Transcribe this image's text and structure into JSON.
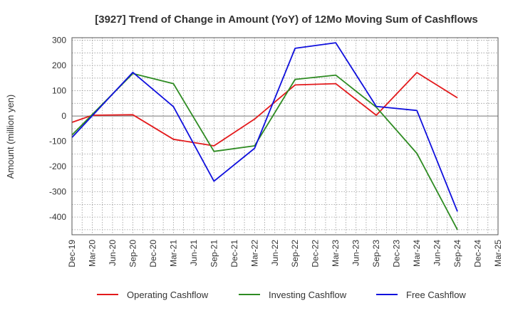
{
  "chart_data": {
    "type": "line",
    "title": "[3927]  Trend of Change in Amount (YoY) of 12Mo Moving Sum of Cashflows",
    "xlabel": "",
    "ylabel": "Amount (million yen)",
    "ylim": [
      -470,
      310
    ],
    "yticks": [
      300,
      200,
      100,
      0,
      -100,
      -200,
      -300,
      -400
    ],
    "categories": [
      "Dec-19",
      "Mar-20",
      "Jun-20",
      "Sep-20",
      "Dec-20",
      "Mar-21",
      "Jun-21",
      "Sep-21",
      "Dec-21",
      "Mar-22",
      "Jun-22",
      "Sep-22",
      "Dec-22",
      "Mar-23",
      "Jun-23",
      "Sep-23",
      "Dec-23",
      "Mar-24",
      "Jun-24",
      "Sep-24",
      "Dec-24",
      "Mar-25"
    ],
    "grid": true,
    "legend_position": "bottom",
    "series": [
      {
        "name": "Operating Cashflow",
        "color": "#e31a1c",
        "values": [
          -25,
          3,
          null,
          5,
          null,
          -92,
          null,
          -118,
          null,
          -12,
          null,
          123,
          null,
          128,
          null,
          3,
          null,
          172,
          null,
          72,
          null,
          null
        ]
      },
      {
        "name": "Investing Cashflow",
        "color": "#2e8b22",
        "values": [
          -75,
          null,
          null,
          168,
          null,
          128,
          null,
          -140,
          null,
          -118,
          null,
          145,
          null,
          162,
          null,
          35,
          null,
          -148,
          null,
          -450,
          null,
          null
        ]
      },
      {
        "name": "Free Cashflow",
        "color": "#1010dd",
        "values": [
          -85,
          null,
          null,
          173,
          null,
          37,
          null,
          -258,
          null,
          -128,
          null,
          268,
          null,
          290,
          null,
          38,
          null,
          22,
          null,
          -378,
          null,
          null
        ]
      }
    ]
  }
}
